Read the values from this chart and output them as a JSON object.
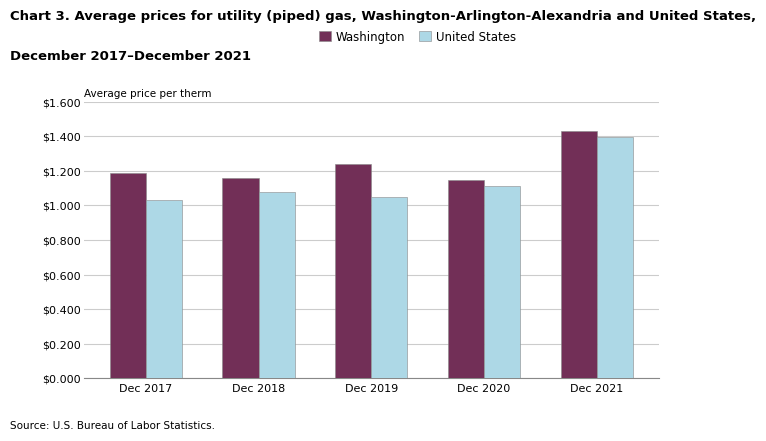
{
  "title_line1": "Chart 3. Average prices for utility (piped) gas, Washington-Arlington-Alexandria and United States,",
  "title_line2": "December 2017–December 2021",
  "axis_label": "Average price per therm",
  "source": "Source: U.S. Bureau of Labor Statistics.",
  "categories": [
    "Dec 2017",
    "Dec 2018",
    "Dec 2019",
    "Dec 2020",
    "Dec 2021"
  ],
  "washington": [
    1.19,
    1.16,
    1.24,
    1.15,
    1.43
  ],
  "united_states": [
    1.03,
    1.08,
    1.05,
    1.11,
    1.395
  ],
  "washington_color": "#722F57",
  "us_color": "#ADD8E6",
  "bar_edge_color": "#888888",
  "legend_labels": [
    "Washington",
    "United States"
  ],
  "ylim": [
    0.0,
    1.6
  ],
  "yticks": [
    0.0,
    0.2,
    0.4,
    0.6,
    0.8,
    1.0,
    1.2,
    1.4,
    1.6
  ],
  "background_color": "#ffffff",
  "grid_color": "#cccccc",
  "title_fontsize": 9.5,
  "axis_label_fontsize": 7.5,
  "tick_fontsize": 8,
  "legend_fontsize": 8.5,
  "source_fontsize": 7.5
}
